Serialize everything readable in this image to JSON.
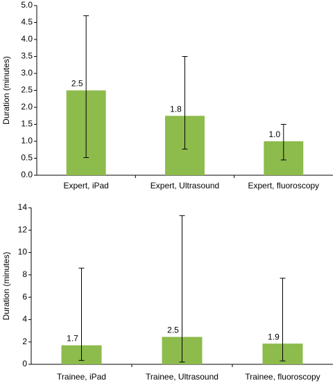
{
  "chart_data": [
    {
      "type": "bar",
      "y_label": "Duration (minutes)",
      "categories": [
        "Expert, iPad",
        "Expert, Ultrasound",
        "Expert, fluoroscopy"
      ],
      "values": [
        2.5,
        1.75,
        1.0
      ],
      "value_labels": [
        "2.5",
        "1.8",
        "1.0"
      ],
      "lower": [
        0.52,
        0.77,
        0.45
      ],
      "upper": [
        4.7,
        3.5,
        1.5
      ],
      "color": "#8dbb4c",
      "ylim": [
        0,
        5
      ],
      "yticks": [
        {
          "value": 0,
          "label": "0.0"
        },
        {
          "value": 0.5,
          "label": "0.5"
        },
        {
          "value": 1,
          "label": "1.0"
        },
        {
          "value": 1.5,
          "label": "1.5"
        },
        {
          "value": 2,
          "label": "2.0"
        },
        {
          "value": 2.5,
          "label": "2.5"
        },
        {
          "value": 3,
          "label": "3.0"
        },
        {
          "value": 3.5,
          "label": "3.5"
        },
        {
          "value": 4,
          "label": "4.0"
        },
        {
          "value": 4.5,
          "label": "4.5"
        },
        {
          "value": 5,
          "label": "5.0"
        }
      ]
    },
    {
      "type": "bar",
      "y_label": "Duration (minutes)",
      "categories": [
        "Trainee, iPad",
        "Trainee, Ultrasound",
        "Trainee, fluoroscopy"
      ],
      "values": [
        1.7,
        2.45,
        1.85
      ],
      "value_labels": [
        "1.7",
        "2.5",
        "1.9"
      ],
      "lower": [
        0.35,
        0.2,
        0.3
      ],
      "upper": [
        8.6,
        13.3,
        7.7
      ],
      "color": "#8dbb4c",
      "ylim": [
        0,
        14
      ],
      "yticks": [
        0,
        2,
        4,
        6,
        8,
        10,
        12,
        14
      ]
    }
  ]
}
